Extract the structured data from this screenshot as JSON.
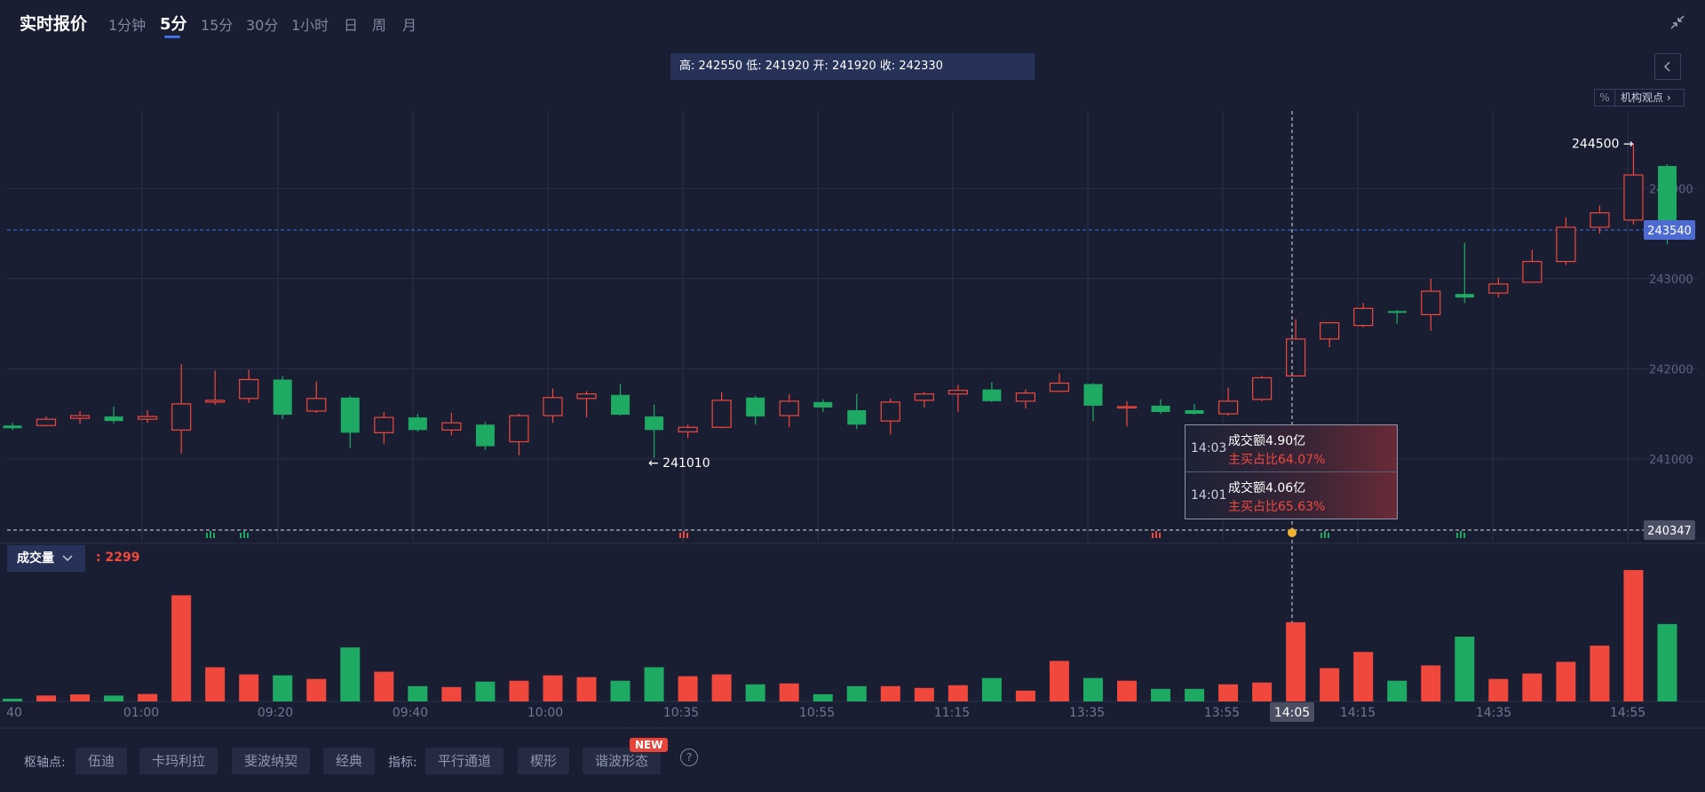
{
  "header": {
    "title": "实时报价",
    "periods": [
      "1分钟",
      "5分",
      "15分",
      "30分",
      "1小时",
      "日",
      "周",
      "月"
    ],
    "active_period": "5分"
  },
  "ohlc_summary": "高: 242550 低: 241920 开: 241920 收: 242330",
  "inst_view": {
    "pct_icon": "%",
    "label": "机构观点"
  },
  "icons": {
    "collapse": "collapse-arrows-icon",
    "side_toggle": "chevron-left-icon",
    "help": "question-icon"
  },
  "colors": {
    "up": "#f0483c",
    "down": "#1faa63",
    "accent": "#3f6fe0",
    "price_label": "#4d6bd0"
  },
  "chart_data": {
    "type": "candlestick",
    "y_ticks": [
      "244000",
      "243000",
      "242000",
      "241000"
    ],
    "ylim": [
      240200,
      244800
    ],
    "x_ticks": [
      "40",
      "01:00",
      "09:20",
      "09:40",
      "10:00",
      "10:35",
      "10:55",
      "11:15",
      "13:35",
      "13:55",
      "14:05",
      "14:15",
      "14:35",
      "14:55"
    ],
    "candles": [
      {
        "o": 241370,
        "h": 241400,
        "l": 241320,
        "c": 241340
      },
      {
        "o": 241370,
        "h": 241470,
        "l": 241360,
        "c": 241440
      },
      {
        "o": 241450,
        "h": 241530,
        "l": 241390,
        "c": 241480
      },
      {
        "o": 241470,
        "h": 241580,
        "l": 241390,
        "c": 241420
      },
      {
        "o": 241440,
        "h": 241540,
        "l": 241400,
        "c": 241470
      },
      {
        "o": 241320,
        "h": 242050,
        "l": 241060,
        "c": 241610
      },
      {
        "o": 241630,
        "h": 241980,
        "l": 241600,
        "c": 241650
      },
      {
        "o": 241670,
        "h": 241990,
        "l": 241620,
        "c": 241880
      },
      {
        "o": 241880,
        "h": 241920,
        "l": 241440,
        "c": 241490
      },
      {
        "o": 241530,
        "h": 241860,
        "l": 241510,
        "c": 241670
      },
      {
        "o": 241680,
        "h": 241700,
        "l": 241120,
        "c": 241290
      },
      {
        "o": 241290,
        "h": 241520,
        "l": 241170,
        "c": 241460
      },
      {
        "o": 241460,
        "h": 241500,
        "l": 241300,
        "c": 241320
      },
      {
        "o": 241320,
        "h": 241510,
        "l": 241260,
        "c": 241400
      },
      {
        "o": 241380,
        "h": 241410,
        "l": 241100,
        "c": 241140
      },
      {
        "o": 241190,
        "h": 241500,
        "l": 241040,
        "c": 241480
      },
      {
        "o": 241480,
        "h": 241780,
        "l": 241400,
        "c": 241680
      },
      {
        "o": 241670,
        "h": 241750,
        "l": 241460,
        "c": 241720
      },
      {
        "o": 241710,
        "h": 241830,
        "l": 241480,
        "c": 241490
      },
      {
        "o": 241470,
        "h": 241600,
        "l": 241010,
        "c": 241320
      },
      {
        "o": 241300,
        "h": 241380,
        "l": 241230,
        "c": 241350
      },
      {
        "o": 241350,
        "h": 241740,
        "l": 241340,
        "c": 241650
      },
      {
        "o": 241680,
        "h": 241700,
        "l": 241380,
        "c": 241470
      },
      {
        "o": 241480,
        "h": 241720,
        "l": 241350,
        "c": 241640
      },
      {
        "o": 241630,
        "h": 241660,
        "l": 241520,
        "c": 241570
      },
      {
        "o": 241540,
        "h": 241720,
        "l": 241330,
        "c": 241380
      },
      {
        "o": 241420,
        "h": 241670,
        "l": 241270,
        "c": 241630
      },
      {
        "o": 241650,
        "h": 241740,
        "l": 241570,
        "c": 241720
      },
      {
        "o": 241720,
        "h": 241820,
        "l": 241520,
        "c": 241760
      },
      {
        "o": 241770,
        "h": 241850,
        "l": 241630,
        "c": 241640
      },
      {
        "o": 241640,
        "h": 241770,
        "l": 241560,
        "c": 241730
      },
      {
        "o": 241750,
        "h": 241950,
        "l": 241740,
        "c": 241840
      },
      {
        "o": 241830,
        "h": 241840,
        "l": 241420,
        "c": 241590
      },
      {
        "o": 241580,
        "h": 241640,
        "l": 241360,
        "c": 241580
      },
      {
        "o": 241590,
        "h": 241660,
        "l": 241500,
        "c": 241520
      },
      {
        "o": 241540,
        "h": 241610,
        "l": 241490,
        "c": 241500
      },
      {
        "o": 241500,
        "h": 241790,
        "l": 241480,
        "c": 241640
      },
      {
        "o": 241660,
        "h": 241920,
        "l": 241640,
        "c": 241900
      },
      {
        "o": 241920,
        "h": 242550,
        "l": 241920,
        "c": 242330
      },
      {
        "o": 242330,
        "h": 242510,
        "l": 242240,
        "c": 242510
      },
      {
        "o": 242480,
        "h": 242730,
        "l": 242460,
        "c": 242670
      },
      {
        "o": 242640,
        "h": 242650,
        "l": 242500,
        "c": 242620
      },
      {
        "o": 242600,
        "h": 243000,
        "l": 242420,
        "c": 242860
      },
      {
        "o": 242830,
        "h": 243400,
        "l": 242730,
        "c": 242790
      },
      {
        "o": 242840,
        "h": 243010,
        "l": 242790,
        "c": 242940
      },
      {
        "o": 242960,
        "h": 243320,
        "l": 242960,
        "c": 243190
      },
      {
        "o": 243190,
        "h": 243680,
        "l": 243150,
        "c": 243570
      },
      {
        "o": 243570,
        "h": 243810,
        "l": 243500,
        "c": 243730
      },
      {
        "o": 243650,
        "h": 244500,
        "l": 243600,
        "c": 244150
      },
      {
        "o": 244250,
        "h": 244270,
        "l": 243380,
        "c": 243540
      }
    ],
    "volume": [
      30,
      66,
      78,
      65,
      83,
      1180,
      380,
      300,
      290,
      250,
      600,
      330,
      170,
      160,
      220,
      230,
      290,
      270,
      230,
      380,
      280,
      300,
      190,
      200,
      80,
      170,
      170,
      150,
      180,
      260,
      120,
      450,
      260,
      230,
      140,
      140,
      190,
      210,
      880,
      370,
      550,
      230,
      400,
      720,
      250,
      310,
      440,
      620,
      1460,
      860
    ],
    "last_price": "243540",
    "crosshair_price": "240347",
    "crosshair_time": "14:05",
    "annotations": [
      {
        "text": "244500",
        "value": 244500
      },
      {
        "text": "241010",
        "value": 241010
      }
    ],
    "volume_label": "成交量",
    "volume_value": ": 2299",
    "tooltip": [
      {
        "time": "14:03",
        "amount": "成交额4.90亿",
        "ratio": "主买占比64.07%"
      },
      {
        "time": "14:01",
        "amount": "成交额4.06亿",
        "ratio": "主买占比65.63%"
      }
    ]
  },
  "bottom": {
    "pivot_label": "枢轴点:",
    "pivot_buttons": [
      "伍迪",
      "卡玛利拉",
      "斐波纳契",
      "经典"
    ],
    "indicator_label": "指标:",
    "indicator_buttons": [
      "平行通道",
      "楔形",
      "谐波形态"
    ],
    "new_badge": "NEW",
    "help": "?"
  }
}
